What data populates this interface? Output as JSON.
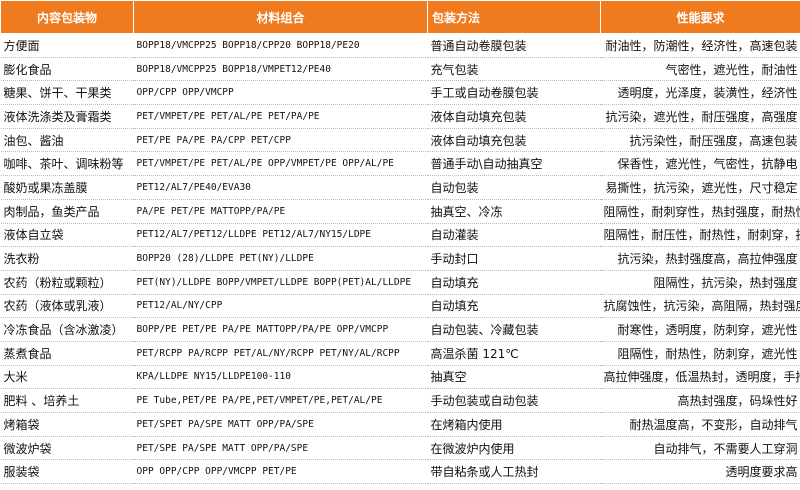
{
  "table": {
    "header": [
      "内容包装物",
      "材料组合",
      "包装方法",
      "性能要求"
    ],
    "rows": [
      [
        "方便面",
        "BOPP18/VMCPP25  BOPP18/CPP20  BOPP18/PE20",
        "普通自动卷膜包装",
        "耐油性，防潮性，经济性，高速包装"
      ],
      [
        "膨化食品",
        "BOPP18/VMCPP25  BOPP18/VMPET12/PE40",
        "充气包装",
        "气密性，遮光性，耐油性"
      ],
      [
        "糖果、饼干、干果类",
        "OPP/CPP OPP/VMCPP",
        "手工或自动卷膜包装",
        "透明度，光泽度，装潢性，经济性"
      ],
      [
        "液体洗涤类及膏霜类",
        "PET/VMPET/PE PET/AL/PE  PET/PA/PE",
        "液体自动填充包装",
        "抗污染，遮光性，耐压强度，高强度"
      ],
      [
        "油包、酱油",
        "PET/PE  PA/PE PA/CPP PET/CPP",
        "液体自动填充包装",
        "抗污染性，耐压强度，高速包装"
      ],
      [
        "咖啡、茶叶、调味粉等",
        "PET/VMPET/PE PET/AL/PE OPP/VMPET/PE OPP/AL/PE",
        "普通手动\\自动抽真空",
        "保香性，遮光性，气密性，抗静电"
      ],
      [
        "酸奶或果冻盖膜",
        "PET12/AL7/PE40/EVA30",
        "自动包装",
        "易撕性，抗污染，遮光性，尺寸稳定"
      ],
      [
        "肉制品，鱼类产品",
        "PA/PE PET/PE MATTOPP/PA/PE",
        "抽真空、冷冻",
        "阻隔性，耐刺穿性，热封强度，耐热性"
      ],
      [
        "液体自立袋",
        "PET12/AL7/PET12/LLDPE PET12/AL7/NY15/LDPE",
        "自动灌装",
        "阻隔性，耐压性，耐热性，耐刺穿，抗污染"
      ],
      [
        "洗衣粉",
        "BOPP20 (28)/LLDPE PET(NY)/LLDPE",
        "手动封口",
        "抗污染，热封强度高，高拉伸强度"
      ],
      [
        "农药（粉粒或颗粒）",
        "PET(NY)/LLDPE BOPP/VMPET/LLDPE BOPP(PET)AL/LLDPE",
        "自动填充",
        "阻隔性，抗污染，热封强度"
      ],
      [
        "农药（液体或乳液）",
        "PET12/AL/NY/CPP",
        "自动填充",
        "抗腐蚀性，抗污染，高阻隔，热封强度"
      ],
      [
        "冷冻食品（含冰激凌）",
        "BOPP/PE PET/PE PA/PE MATTOPP/PA/PE OPP/VMCPP",
        "自动包装、冷藏包装",
        "耐寒性，透明度，防刺穿，遮光性"
      ],
      [
        "蒸煮食品",
        "PET/RCPP PA/RCPP PET/AL/NY/RCPP PET/NY/AL/RCPP",
        "高温杀菌 121℃",
        "阻隔性，耐热性，防刺穿，遮光性"
      ],
      [
        "大米",
        "KPA/LLDPE NY15/LLDPE100-110",
        "抽真空",
        "高拉伸强度，低温热封，透明度，手拎强度高"
      ],
      [
        "肥料 、培养土",
        "PE Tube,PET/PE  PA/PE,PET/VMPET/PE,PET/AL/PE",
        "手动包装或自动包装",
        "高热封强度，码垛性好"
      ],
      [
        "烤箱袋",
        "PET/SPET PA/SPE MATT OPP/PA/SPE",
        "在烤箱内使用",
        "耐热温度高，不变形，自动排气"
      ],
      [
        "微波炉袋",
        "PET/SPE PA/SPE MATT OPP/PA/SPE",
        "在微波炉内使用",
        "自动排气，不需要人工穿洞"
      ],
      [
        "服装袋",
        "OPP  OPP/CPP OPP/VMCPP PET/PE",
        "带自粘条或人工热封",
        "透明度要求高"
      ]
    ]
  }
}
